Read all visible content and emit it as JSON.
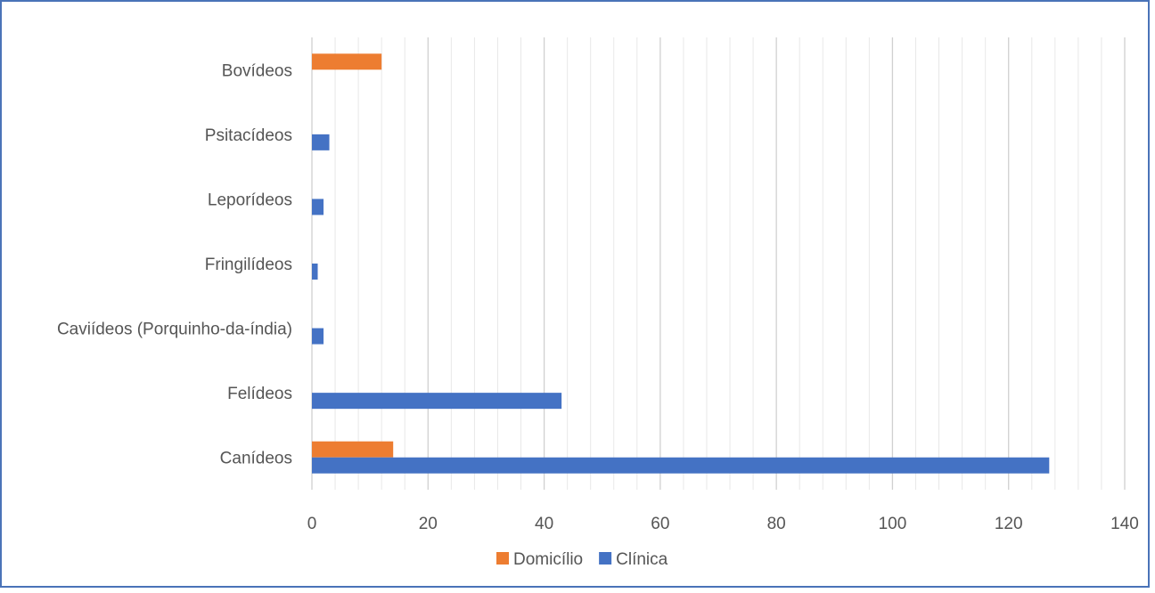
{
  "chart_data": {
    "type": "bar",
    "orientation": "horizontal",
    "categories": [
      "Canídeos",
      "Felídeos",
      "Caviídeos (Porquinho-da-índia)",
      "Fringilídeos",
      "Leporídeos",
      "Psitacídeos",
      "Bovídeos"
    ],
    "series": [
      {
        "name": "Domicílio",
        "color": "#ed7d31",
        "values": [
          14,
          0,
          0,
          0,
          0,
          0,
          12
        ]
      },
      {
        "name": "Clínica",
        "color": "#4472c4",
        "values": [
          127,
          43,
          2,
          1,
          2,
          3,
          0
        ]
      }
    ],
    "xlim": [
      0,
      140
    ],
    "xticks": [
      "0",
      "20",
      "40",
      "60",
      "80",
      "100",
      "120",
      "140"
    ],
    "grid": true,
    "legend_position": "bottom"
  }
}
